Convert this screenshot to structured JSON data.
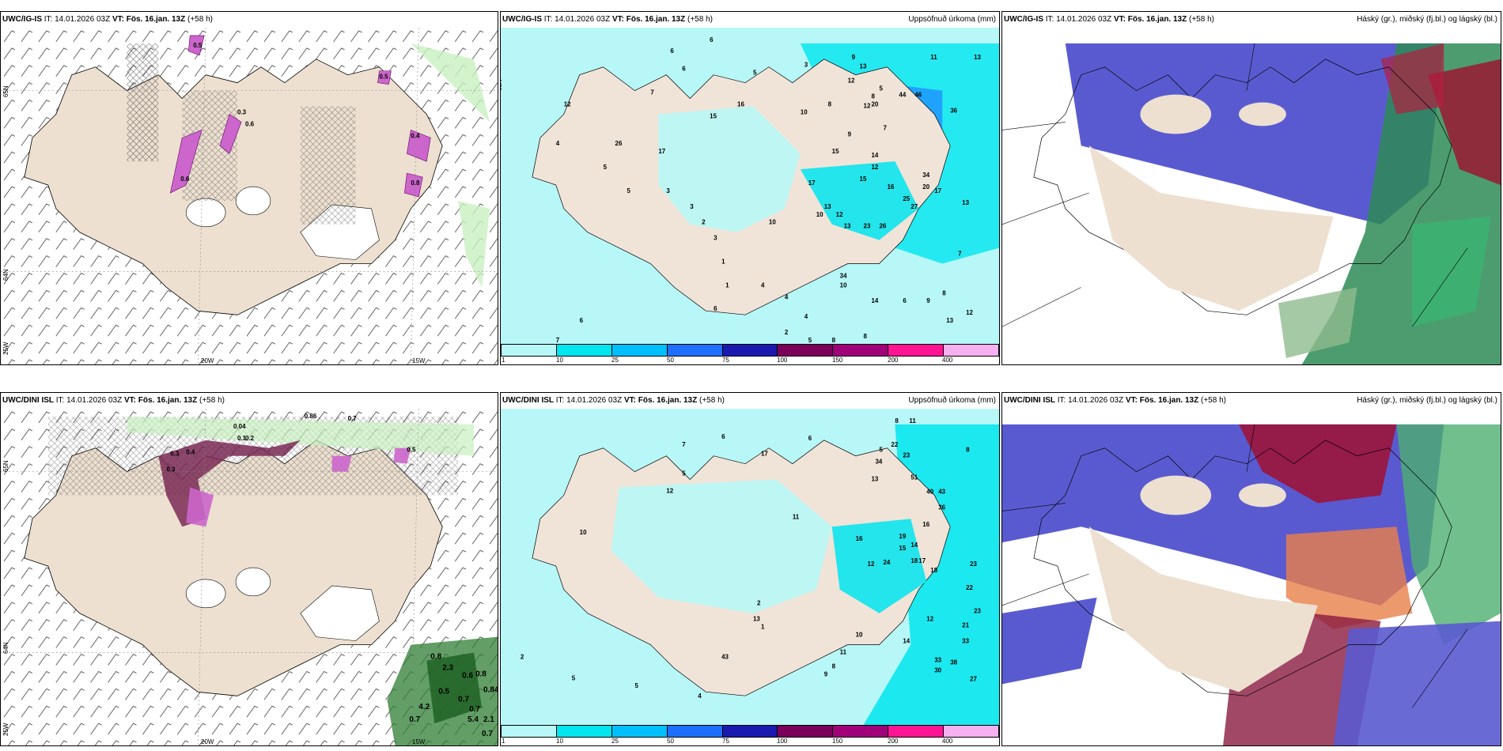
{
  "panels": [
    {
      "model": "UWC/IG-IS",
      "it": "IT: 14.01.2026 03Z",
      "vt_label": "VT:",
      "vt": "Fös. 16.jan. 13Z",
      "lead": "(+58 h)",
      "right": ""
    },
    {
      "model": "UWC/IG-IS",
      "it": "IT: 14.01.2026 03Z",
      "vt_label": "VT:",
      "vt": "Fös. 16.jan. 13Z",
      "lead": "(+58 h)",
      "right": "Uppsöfnuð úrkoma (mm)"
    },
    {
      "model": "UWC/IG-IS",
      "it": "IT: 14.01.2026 03Z",
      "vt_label": "VT:",
      "vt": "Fös. 16.jan. 13Z",
      "lead": "(+58 h)",
      "right": "Háský (gr.), miðský (fj.bl.) og lágský (bl.)"
    },
    {
      "model": "UWC/DINI ISL",
      "it": "IT: 14.01.2026 03Z",
      "vt_label": "VT:",
      "vt": "Fös. 16.jan. 13Z",
      "lead": "(+58 h)",
      "right": ""
    },
    {
      "model": "UWC/DINI ISL",
      "it": "IT: 14.01.2026 03Z",
      "vt_label": "VT:",
      "vt": "Fös. 16.jan. 13Z",
      "lead": "(+58 h)",
      "right": "Uppsöfnuð úrkoma (mm)"
    },
    {
      "model": "UWC/DINI ISL",
      "it": "IT: 14.01.2026 03Z",
      "vt_label": "VT:",
      "vt": "Fös. 16.jan. 13Z",
      "lead": "(+58 h)",
      "right": "Háský (gr.), miðský (fj.bl.) og lágský (bl.)"
    }
  ],
  "axis_labels": {
    "lat_top": "65N",
    "lat_bottom": "64N",
    "lon_left": "25W",
    "lon_mid": "20W",
    "lon_right": "15W"
  },
  "colorbar": {
    "colors": [
      "#b8f7f7",
      "#00e5ee",
      "#00bfff",
      "#1e6fff",
      "#1a1ab0",
      "#7a005a",
      "#a0007a",
      "#ff1493",
      "#f5b0f0"
    ],
    "ticks": [
      "1",
      "10",
      "25",
      "50",
      "75",
      "100",
      "150",
      "200",
      "400"
    ]
  },
  "precip_top_values": [
    "6",
    "6",
    "6",
    "5",
    "3",
    "7",
    "9",
    "13",
    "11",
    "13",
    "12",
    "5",
    "8",
    "10",
    "16",
    "15",
    "8",
    "12",
    "9",
    "7",
    "20",
    "44",
    "46",
    "36",
    "13",
    "26",
    "12",
    "17",
    "15",
    "10",
    "5",
    "5",
    "3",
    "3",
    "2",
    "4",
    "1",
    "17",
    "14",
    "12",
    "16",
    "15",
    "34",
    "25",
    "20",
    "17",
    "13",
    "10",
    "12",
    "13",
    "27",
    "26",
    "23",
    "3",
    "1",
    "4",
    "6",
    "4",
    "10",
    "34",
    "14",
    "6",
    "9",
    "8",
    "13",
    "7",
    "12",
    "6",
    "7",
    "4",
    "2",
    "5",
    "8",
    "8"
  ],
  "precip_bottom_values": [
    "7",
    "6",
    "6",
    "5",
    "8",
    "11",
    "8",
    "22",
    "23",
    "34",
    "13",
    "51",
    "40",
    "43",
    "16",
    "36",
    "23",
    "22",
    "23",
    "12",
    "21",
    "33",
    "38",
    "33",
    "30",
    "27",
    "14",
    "16",
    "19",
    "14",
    "15",
    "18",
    "17",
    "18",
    "24",
    "12",
    "10",
    "11",
    "8",
    "9",
    "43",
    "4",
    "5",
    "2",
    "5",
    "10",
    "12",
    "5",
    "2",
    "13",
    "11",
    "17",
    "1"
  ],
  "snow_top_values": [
    "0.5",
    "0.3",
    "0.6",
    "0.5",
    "0.4",
    "0.8",
    "0.6"
  ],
  "snow_bottom_values": [
    "0.86",
    "0.7",
    "0.04",
    "0.1",
    "0.2",
    "0.3",
    "0.4",
    "0.3",
    "0.5",
    "0.8",
    "2.3",
    "0.6",
    "0.8",
    "0.5",
    "0.7",
    "0.84",
    "0.7",
    "4.2",
    "5.4",
    "2.1",
    "0.7",
    "0.7"
  ]
}
